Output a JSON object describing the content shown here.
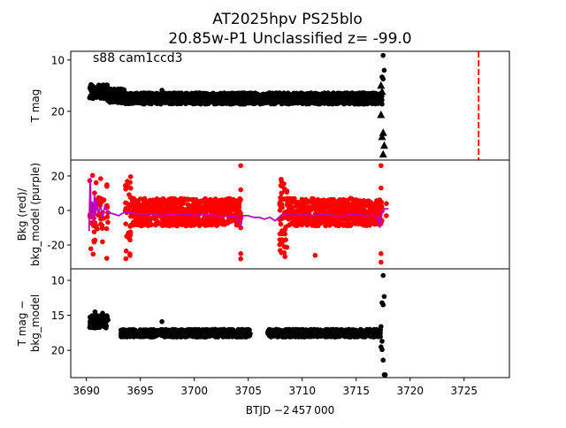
{
  "chart_data": {
    "type": "scatter",
    "title_line1": "AT2025hpv  PS25blo",
    "title_line2": "20.85w-P1 Unclassified z= -99.0",
    "xlabel": "BTJD −2 457 000",
    "xlim": [
      3688.55,
      3729.2
    ],
    "xticks": [
      3690,
      3695,
      3700,
      3705,
      3710,
      3715,
      3720,
      3725
    ],
    "panels": [
      {
        "id": "tmag",
        "ylabel": [
          "T mag"
        ],
        "ylim": [
          29.5,
          8.3
        ],
        "yticks": [
          10,
          20
        ],
        "annotation": "s88 cam1ccd3",
        "vline": {
          "x": 3726.35,
          "color": "#ff0000",
          "style": "dashed"
        },
        "bands": [
          {
            "x": [
              3690.3,
              3692.0
            ],
            "y": [
              14.8,
              17.6
            ],
            "color": "#000000"
          },
          {
            "x": [
              3692.0,
              3693.5
            ],
            "y": [
              15.6,
              18.4
            ],
            "color": "#000000"
          },
          {
            "x": [
              3693.5,
              3717.4
            ],
            "y": [
              16.4,
              18.6
            ],
            "color": "#000000"
          }
        ],
        "points": [
          [
            3697.0,
            15.9
          ],
          [
            3717.5,
            9.1
          ],
          [
            3717.6,
            12.0
          ],
          [
            3717.4,
            13.3
          ],
          [
            3717.5,
            13.7
          ]
        ],
        "triangles": [
          [
            3717.3,
            15.0
          ],
          [
            3717.4,
            16.2
          ],
          [
            3717.3,
            20.7
          ],
          [
            3717.5,
            24.2
          ],
          [
            3717.4,
            25.0
          ],
          [
            3717.6,
            26.7
          ],
          [
            3717.5,
            28.4
          ]
        ]
      },
      {
        "id": "bkg",
        "ylabel": [
          "Bkg (red)/",
          "bkg_model (purple)"
        ],
        "ylim": [
          -33.8,
          29.2
        ],
        "yticks": [
          -20,
          0,
          20
        ],
        "bands": [
          {
            "x": [
              3690.3,
              3692.0
            ],
            "y": [
              -28,
              26
            ],
            "color": "#ff0000",
            "sparse": true
          },
          {
            "x": [
              3693.6,
              3694.1
            ],
            "y": [
              -30,
              25
            ],
            "color": "#ff0000"
          },
          {
            "x": [
              3694.1,
              3704.3
            ],
            "y": [
              -9,
              7
            ],
            "color": "#ff0000"
          },
          {
            "x": [
              3707.9,
              3708.6
            ],
            "y": [
              -30,
              20
            ],
            "color": "#ff0000"
          },
          {
            "x": [
              3708.6,
              3717.4
            ],
            "y": [
              -9,
              7
            ],
            "color": "#ff0000"
          }
        ],
        "points": [
          [
            3704.3,
            26
          ],
          [
            3704.3,
            12
          ],
          [
            3704.3,
            -10
          ],
          [
            3704.3,
            -25
          ],
          [
            3704.3,
            -28
          ],
          [
            3717.3,
            26
          ],
          [
            3717.3,
            13
          ],
          [
            3717.3,
            -25
          ],
          [
            3717.3,
            -30
          ],
          [
            3711.2,
            -26
          ],
          [
            3717.8,
            4
          ],
          [
            3717.8,
            -3
          ]
        ],
        "line": {
          "color": "#bf00bf",
          "x": [
            3690.25,
            3690.35,
            3690.45,
            3690.55,
            3690.65,
            3690.75,
            3690.85,
            3690.95,
            3691.1,
            3691.3,
            3691.5,
            3691.7,
            3692.0,
            3692.5,
            3693.0,
            3693.5,
            3694.0,
            3695,
            3696,
            3697,
            3698,
            3699,
            3700,
            3701,
            3702,
            3703,
            3704,
            3704.3,
            3704.5,
            3705,
            3705.5,
            3706,
            3706.5,
            3707,
            3707.5,
            3708,
            3708.5,
            3709,
            3710,
            3711,
            3712,
            3713,
            3714,
            3715,
            3716,
            3717.0,
            3717.2,
            3717.4,
            3717.6,
            3718.0
          ],
          "y": [
            -12,
            19,
            -5,
            5,
            -8,
            10,
            -3,
            6,
            -2,
            3,
            -4,
            2,
            -1,
            -2,
            -3,
            -1,
            -1,
            -2,
            -2,
            -3,
            -2,
            -2,
            -3,
            -2,
            -3,
            -3,
            -4,
            -9,
            -3,
            -3,
            -4,
            -4,
            -5,
            -4,
            -6,
            -3,
            -2,
            -2,
            -2,
            -3,
            -2,
            -3,
            -3,
            -2,
            -3,
            -3,
            -10,
            -1,
            1,
            1
          ]
        }
      },
      {
        "id": "tdiff",
        "ylabel": [
          "T mag −",
          "bkg_model"
        ],
        "ylim": [
          23.9,
          8.35
        ],
        "yticks": [
          10,
          15,
          20
        ],
        "bands": [
          {
            "x": [
              3690.3,
              3692.0
            ],
            "y": [
              15.0,
              16.8
            ],
            "color": "#000000"
          },
          {
            "x": [
              3693.2,
              3705.2
            ],
            "y": [
              17.0,
              18.1
            ],
            "color": "#000000"
          },
          {
            "x": [
              3706.8,
              3717.3
            ],
            "y": [
              17.0,
              18.1
            ],
            "color": "#000000"
          }
        ],
        "points": [
          [
            3697.0,
            15.9
          ],
          [
            3690.8,
            14.5
          ],
          [
            3691.5,
            14.7
          ],
          [
            3717.5,
            9.3
          ],
          [
            3717.6,
            12.3
          ],
          [
            3717.4,
            13.2
          ],
          [
            3717.5,
            13.5
          ],
          [
            3717.3,
            16.6
          ],
          [
            3717.4,
            18.7
          ],
          [
            3717.3,
            19.5
          ],
          [
            3717.4,
            19.9
          ],
          [
            3717.5,
            21.4
          ],
          [
            3717.6,
            23.5
          ],
          [
            3717.7,
            23.5
          ]
        ]
      }
    ]
  }
}
